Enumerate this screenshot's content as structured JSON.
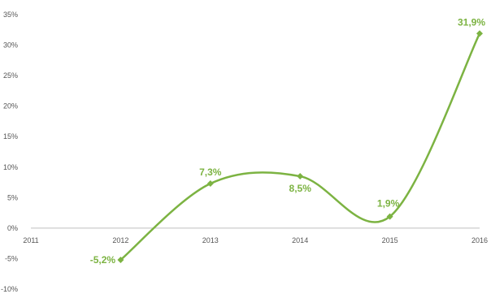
{
  "chart_data": {
    "type": "line",
    "x": [
      2012,
      2013,
      2014,
      2015,
      2016
    ],
    "values": [
      -5.2,
      7.3,
      8.5,
      1.9,
      31.9
    ],
    "data_labels": [
      "-5,2%",
      "7,3%",
      "8,5%",
      "1,9%",
      "31,9%"
    ],
    "x_ticks": [
      "2011",
      "2012",
      "2013",
      "2014",
      "2015",
      "2016"
    ],
    "y_ticks": [
      "-10%",
      "-5%",
      "0%",
      "5%",
      "10%",
      "15%",
      "20%",
      "25%",
      "30%",
      "35%"
    ],
    "xlim": [
      2011,
      2016
    ],
    "ylim": [
      -10,
      35
    ],
    "smooth": true,
    "grid": false,
    "line_color": "#7cb342",
    "label_color": "#7cb342",
    "axis_color": "#bfbfbf"
  }
}
